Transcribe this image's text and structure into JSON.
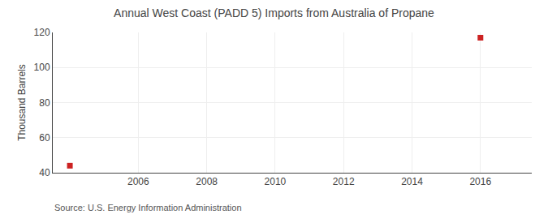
{
  "chart_data": {
    "type": "scatter",
    "title": "Annual West Coast (PADD 5) Imports from Australia of Propane",
    "y_label": "Thousand Barrels",
    "annotations": [
      "Source: U.S. Energy Information Administration"
    ],
    "x": [
      2004,
      2016
    ],
    "values": [
      44,
      117
    ],
    "color": "#CC2222",
    "marker": "square",
    "xlim": [
      2003.5,
      2017.5
    ],
    "xticks": [
      2006,
      2008,
      2010,
      2012,
      2014,
      2016
    ],
    "ylim": [
      40,
      120
    ],
    "yticks": [
      40,
      60,
      80,
      100,
      120
    ],
    "grid": true
  }
}
